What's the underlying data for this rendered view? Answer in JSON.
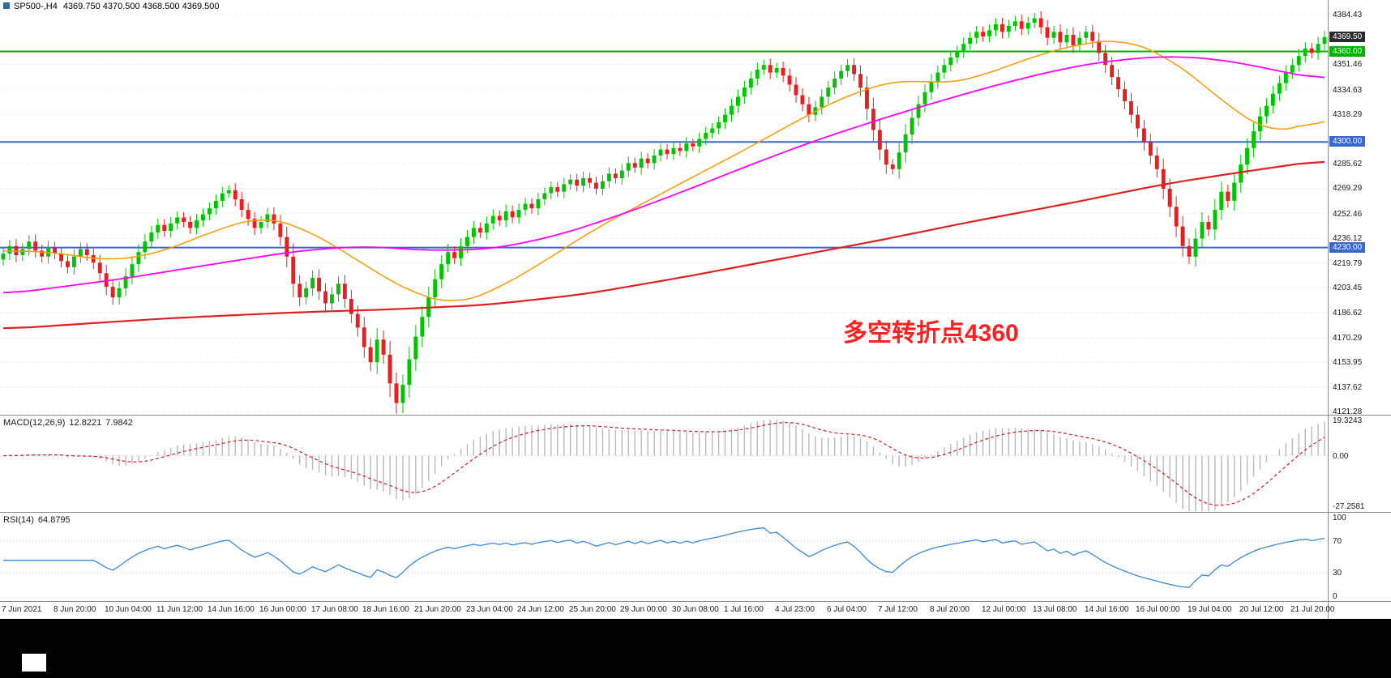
{
  "window": {
    "title_symbol": "SP500-,H4",
    "title_quotes": "4369.750 4370.500 4368.500 4369.500"
  },
  "chart_data": {
    "type": "candlestick",
    "title": "SP500-,H4 4369.750 4370.500 4368.500 4369.500",
    "candles_per_label": 8,
    "x_labels": [
      "7 Jun 2021",
      "8 Jun 20:00",
      "10 Jun 04:00",
      "11 Jun 12:00",
      "14 Jun 16:00",
      "16 Jun 00:00",
      "17 Jun 08:00",
      "18 Jun 16:00",
      "21 Jun 20:00",
      "23 Jun 04:00",
      "24 Jun 12:00",
      "25 Jun 20:00",
      "29 Jun 00:00",
      "30 Jun 08:00",
      "1 Jul 16:00",
      "4 Jul 23:00",
      "6 Jul 04:00",
      "7 Jul 12:00",
      "8 Jul 20:00",
      "12 Jul 00:00",
      "13 Jul 08:00",
      "14 Jul 16:00",
      "16 Jul 00:00",
      "19 Jul 04:00",
      "20 Jul 12:00",
      "21 Jul 20:00"
    ],
    "price_panel": {
      "ylim": [
        4119.2,
        4394.1
      ],
      "yticks": [
        "4384.43",
        "4351.46",
        "4334.63",
        "4318.29",
        "4285.62",
        "4269.29",
        "4252.46",
        "4236.12",
        "4219.79",
        "4203.45",
        "4186.62",
        "4170.29",
        "4153.95",
        "4137.62",
        "4121.28"
      ],
      "up_color": "#00c400",
      "down_color": "#ee1c1c",
      "first_open": 4222,
      "closes": [
        4226,
        4231,
        4225,
        4229,
        4234,
        4228,
        4224,
        4230,
        4226,
        4221,
        4217,
        4224,
        4229,
        4225,
        4220,
        4213,
        4204,
        4197,
        4203,
        4211,
        4219,
        4227,
        4234,
        4240,
        4245,
        4241,
        4246,
        4250,
        4247,
        4243,
        4248,
        4252,
        4256,
        4261,
        4266,
        4268,
        4262,
        4255,
        4249,
        4243,
        4247,
        4252,
        4246,
        4237,
        4224,
        4206,
        4197,
        4203,
        4210,
        4201,
        4193,
        4199,
        4206,
        4196,
        4186,
        4177,
        4164,
        4154,
        4169,
        4159,
        4140,
        4127,
        4139,
        4156,
        4171,
        4184,
        4197,
        4209,
        4219,
        4227,
        4223,
        4231,
        4237,
        4243,
        4240,
        4246,
        4251,
        4248,
        4254,
        4250,
        4255,
        4259,
        4256,
        4262,
        4266,
        4270,
        4267,
        4272,
        4275,
        4271,
        4276,
        4273,
        4269,
        4274,
        4279,
        4276,
        4281,
        4286,
        4283,
        4289,
        4286,
        4291,
        4295,
        4292,
        4296,
        4294,
        4299,
        4297,
        4302,
        4306,
        4309,
        4313,
        4318,
        4324,
        4330,
        4336,
        4342,
        4348,
        4351,
        4346,
        4349,
        4344,
        4338,
        4331,
        4325,
        4318,
        4323,
        4330,
        4336,
        4342,
        4347,
        4351,
        4345,
        4336,
        4322,
        4308,
        4295,
        4285,
        4282,
        4293,
        4305,
        4316,
        4325,
        4333,
        4340,
        4346,
        4351,
        4356,
        4360,
        4365,
        4369,
        4373,
        4370,
        4374,
        4378,
        4373,
        4377,
        4380,
        4375,
        4379,
        4382,
        4376,
        4369,
        4373,
        4366,
        4371,
        4364,
        4369,
        4373,
        4367,
        4359,
        4351,
        4343,
        4335,
        4327,
        4318,
        4309,
        4300,
        4291,
        4282,
        4269,
        4257,
        4244,
        4231,
        4224,
        4236,
        4247,
        4242,
        4255,
        4267,
        4261,
        4273,
        4285,
        4296,
        4307,
        4317,
        4324,
        4332,
        4339,
        4346,
        4351,
        4357,
        4362,
        4359,
        4365,
        4369.5
      ],
      "mas": [
        {
          "name": "ma-fast-orange",
          "color": "#ff9900",
          "width": 1.5,
          "points": [
            [
              0,
              4228
            ],
            [
              8,
              4227
            ],
            [
              16,
              4221
            ],
            [
              24,
              4226
            ],
            [
              32,
              4240
            ],
            [
              40,
              4251
            ],
            [
              46,
              4244
            ],
            [
              52,
              4230
            ],
            [
              58,
              4213
            ],
            [
              64,
              4199
            ],
            [
              70,
              4192
            ],
            [
              76,
              4201
            ],
            [
              84,
              4221
            ],
            [
              92,
              4243
            ],
            [
              100,
              4261
            ],
            [
              108,
              4279
            ],
            [
              116,
              4297
            ],
            [
              124,
              4316
            ],
            [
              132,
              4333
            ],
            [
              140,
              4342
            ],
            [
              146,
              4338
            ],
            [
              152,
              4344
            ],
            [
              160,
              4357
            ],
            [
              168,
              4366
            ],
            [
              174,
              4368
            ],
            [
              180,
              4358
            ],
            [
              186,
              4339
            ],
            [
              192,
              4317
            ],
            [
              197,
              4306
            ],
            [
              201,
              4308
            ],
            [
              205,
              4319
            ]
          ]
        },
        {
          "name": "ma-medium-magenta",
          "color": "#ff00ff",
          "width": 1.8,
          "points": [
            [
              0,
              4199
            ],
            [
              18,
              4209
            ],
            [
              34,
              4220
            ],
            [
              46,
              4228
            ],
            [
              56,
              4231
            ],
            [
              66,
              4228
            ],
            [
              76,
              4229
            ],
            [
              86,
              4238
            ],
            [
              96,
              4252
            ],
            [
              106,
              4268
            ],
            [
              116,
              4285
            ],
            [
              126,
              4301
            ],
            [
              136,
              4315
            ],
            [
              146,
              4328
            ],
            [
              156,
              4340
            ],
            [
              166,
              4350
            ],
            [
              174,
              4355
            ],
            [
              182,
              4357
            ],
            [
              190,
              4354
            ],
            [
              198,
              4347
            ],
            [
              205,
              4341
            ]
          ]
        },
        {
          "name": "ma-slow-red",
          "color": "#dd2222",
          "width": 2.2,
          "points": [
            [
              0,
              4176
            ],
            [
              25,
              4183
            ],
            [
              45,
              4187
            ],
            [
              60,
              4189
            ],
            [
              75,
              4192
            ],
            [
              90,
              4199
            ],
            [
              105,
              4210
            ],
            [
              120,
              4222
            ],
            [
              135,
              4234
            ],
            [
              150,
              4247
            ],
            [
              165,
              4259
            ],
            [
              180,
              4272
            ],
            [
              192,
              4280
            ],
            [
              205,
              4288
            ]
          ]
        }
      ],
      "hlines": [
        {
          "value": 4360,
          "label": "4360.00",
          "color": "#00b200"
        },
        {
          "value": 4300,
          "label": "4300.00",
          "color": "#3b66cc"
        },
        {
          "value": 4230,
          "label": "4230.00",
          "color": "#3b66cc"
        }
      ],
      "current_price": {
        "value": 4369.5,
        "label": "4369.50",
        "box_color": "#2b2b2b"
      },
      "annotation": {
        "text": "多空转折点4360",
        "color": "#ff2020"
      }
    },
    "macd_panel": {
      "label": "MACD(12,26,9)",
      "value_main": "12.8221",
      "value_signal": "7.9842",
      "fast": 12,
      "slow": 26,
      "signal": 9,
      "ylim": [
        -30.5,
        21.8
      ],
      "yticks": [
        "19.3243",
        "0.00",
        "-27.2581"
      ],
      "hist_color": "#b8b8b8",
      "signal_color": "#d42020"
    },
    "rsi_panel": {
      "label": "RSI(14)",
      "value": "64.8795",
      "period": 14,
      "ylim": [
        -6,
        106
      ],
      "yticks": [
        "100",
        "70",
        "30",
        "0"
      ],
      "levels": [
        70,
        30
      ],
      "line_color": "#3789d8"
    }
  },
  "footer": {
    "bg_color": "#000000",
    "box_color": "#ffffff"
  }
}
